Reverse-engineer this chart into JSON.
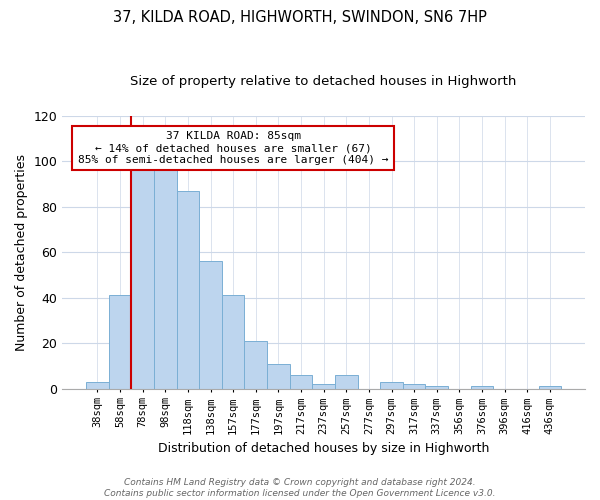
{
  "title": "37, KILDA ROAD, HIGHWORTH, SWINDON, SN6 7HP",
  "subtitle": "Size of property relative to detached houses in Highworth",
  "xlabel": "Distribution of detached houses by size in Highworth",
  "ylabel": "Number of detached properties",
  "bar_labels": [
    "38sqm",
    "58sqm",
    "78sqm",
    "98sqm",
    "118sqm",
    "138sqm",
    "157sqm",
    "177sqm",
    "197sqm",
    "217sqm",
    "237sqm",
    "257sqm",
    "277sqm",
    "297sqm",
    "317sqm",
    "337sqm",
    "356sqm",
    "376sqm",
    "396sqm",
    "416sqm",
    "436sqm"
  ],
  "bar_heights": [
    3,
    41,
    100,
    96,
    87,
    56,
    41,
    21,
    11,
    6,
    2,
    6,
    0,
    3,
    2,
    1,
    0,
    1,
    0,
    0,
    1
  ],
  "bar_color": "#bdd5ee",
  "bar_edge_color": "#7aafd4",
  "vline_color": "#cc0000",
  "vline_x": 2.5,
  "ylim": [
    0,
    120
  ],
  "yticks": [
    0,
    20,
    40,
    60,
    80,
    100,
    120
  ],
  "annotation_title": "37 KILDA ROAD: 85sqm",
  "annotation_line1": "← 14% of detached houses are smaller (67)",
  "annotation_line2": "85% of semi-detached houses are larger (404) →",
  "annotation_box_color": "#ffffff",
  "annotation_box_edge_color": "#cc0000",
  "footer_line1": "Contains HM Land Registry data © Crown copyright and database right 2024.",
  "footer_line2": "Contains public sector information licensed under the Open Government Licence v3.0.",
  "background_color": "#ffffff",
  "grid_color": "#cdd8e8",
  "title_fontsize": 10.5,
  "subtitle_fontsize": 9.5
}
